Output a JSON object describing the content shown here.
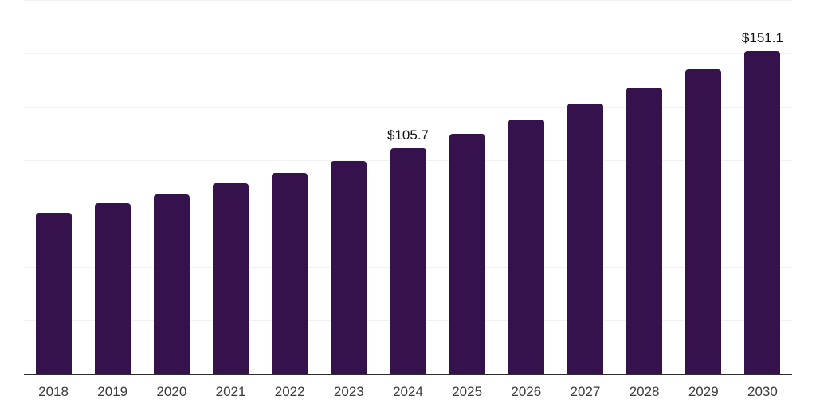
{
  "chart_data": {
    "type": "bar",
    "categories": [
      "2018",
      "2019",
      "2020",
      "2021",
      "2022",
      "2023",
      "2024",
      "2025",
      "2026",
      "2027",
      "2028",
      "2029",
      "2030"
    ],
    "values": [
      75.3,
      79.7,
      84.0,
      89.0,
      94.1,
      99.7,
      105.7,
      112.2,
      119.1,
      126.4,
      134.1,
      142.4,
      151.1
    ],
    "annotations": [
      {
        "category": "2024",
        "text": "$105.7"
      },
      {
        "category": "2030",
        "text": "$151.1"
      }
    ],
    "title": "",
    "xlabel": "",
    "ylabel": "",
    "ylim": [
      0,
      175
    ],
    "gridline_step": 25,
    "grid": true,
    "legend": false,
    "bar_color": "#36124d",
    "axis_color": "#2d2d2d",
    "gridline_color": "#f1f1f3",
    "tick_label_color": "#3b3b3b",
    "annotation_color": "#101010"
  }
}
